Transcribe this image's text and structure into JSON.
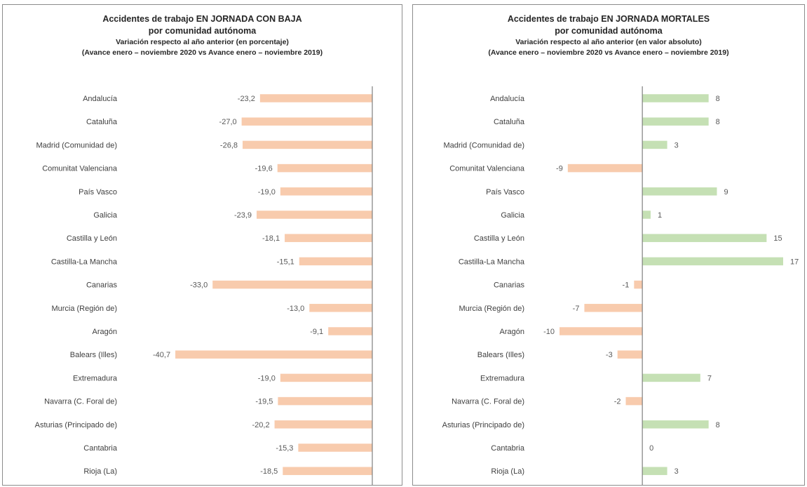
{
  "charts": [
    {
      "title_line1": "Accidentes de trabajo EN JORNADA CON BAJA",
      "title_line2": "por comunidad autónoma",
      "subtitle_line1": "Variación respecto al año anterior (en porcentaje)",
      "subtitle_line2": "(Avance enero – noviembre 2020 vs Avance enero – noviembre 2019)"
    },
    {
      "title_line1": "Accidentes de trabajo EN JORNADA MORTALES",
      "title_line2": "por comunidad autónoma",
      "subtitle_line1": "Variación respecto al año anterior (en valor absoluto)",
      "subtitle_line2": "(Avance enero – noviembre 2020 vs Avance enero – noviembre 2019)"
    }
  ],
  "chart_data": [
    {
      "type": "bar",
      "orientation": "horizontal",
      "categories": [
        "Andalucía",
        "Cataluña",
        "Madrid (Comunidad de)",
        "Comunitat Valenciana",
        "País Vasco",
        "Galicia",
        "Castilla y León",
        "Castilla-La Mancha",
        "Canarias",
        "Murcia (Región de)",
        "Aragón",
        "Balears (Illes)",
        "Extremadura",
        "Navarra (C. Foral de)",
        "Asturias (Principado de)",
        "Cantabria",
        "Rioja (La)"
      ],
      "values": [
        -23.2,
        -27.0,
        -26.8,
        -19.6,
        -19.0,
        -23.9,
        -18.1,
        -15.1,
        -33.0,
        -13.0,
        -9.1,
        -40.7,
        -19.0,
        -19.5,
        -20.2,
        -15.3,
        -18.5
      ],
      "value_labels": [
        "-23,2",
        "-27,0",
        "-26,8",
        "-19,6",
        "-19,0",
        "-23,9",
        "-18,1",
        "-15,1",
        "-33,0",
        "-13,0",
        "-9,1",
        "-40,7",
        "-19,0",
        "-19,5",
        "-20,2",
        "-15,3",
        "-18,5"
      ],
      "xlim": [
        -41,
        0
      ],
      "grid": false,
      "legend": false,
      "negative_color": "#f8cbad",
      "positive_color": "#c5e0b4",
      "axis_color": "#7f7f7f"
    },
    {
      "type": "bar",
      "orientation": "horizontal",
      "categories": [
        "Andalucía",
        "Cataluña",
        "Madrid (Comunidad de)",
        "Comunitat Valenciana",
        "País Vasco",
        "Galicia",
        "Castilla y León",
        "Castilla-La Mancha",
        "Canarias",
        "Murcia (Región de)",
        "Aragón",
        "Balears (Illes)",
        "Extremadura",
        "Navarra (C. Foral de)",
        "Asturias (Principado de)",
        "Cantabria",
        "Rioja (La)"
      ],
      "values": [
        8,
        8,
        3,
        -9,
        9,
        1,
        15,
        17,
        -1,
        -7,
        -10,
        -3,
        7,
        -2,
        8,
        0,
        3
      ],
      "value_labels": [
        "8",
        "8",
        "3",
        "-9",
        "9",
        "1",
        "15",
        "17",
        "-1",
        "-7",
        "-10",
        "-3",
        "7",
        "-2",
        "8",
        "0",
        "3"
      ],
      "xlim": [
        -10,
        17
      ],
      "grid": false,
      "legend": false,
      "negative_color": "#f8cbad",
      "positive_color": "#c5e0b4",
      "axis_color": "#7f7f7f"
    }
  ]
}
